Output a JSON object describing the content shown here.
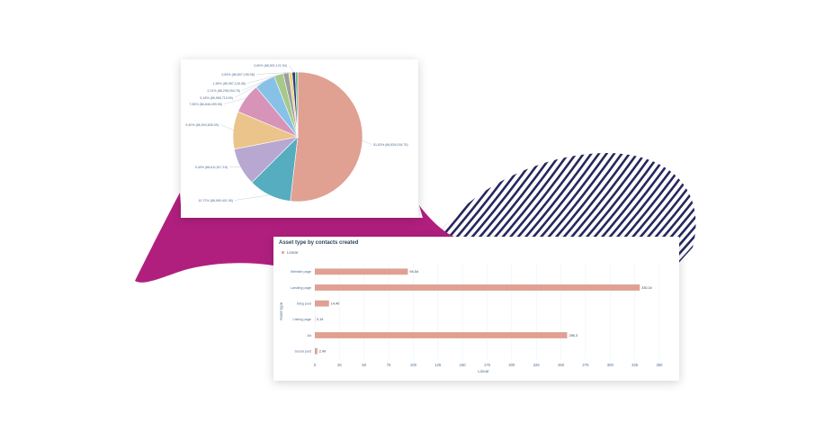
{
  "colors": {
    "magenta_shape": "#b01f7e",
    "stripes": "#27275e",
    "bar": "#e0a092",
    "grid": "#eaf0f6",
    "text": "#516f90",
    "title": "#33475b"
  },
  "chart_data": [
    {
      "type": "pie",
      "title": "",
      "slices": [
        {
          "label": "51,83% (86,839,018.75)",
          "value": 51.83,
          "color": "#e0a092"
        },
        {
          "label": "10,72% (88,969,401.95)",
          "value": 10.72,
          "color": "#56adc0"
        },
        {
          "label": "9,40% (88,611,517.18)",
          "value": 9.4,
          "color": "#b8a7d0"
        },
        {
          "label": "9,40% (86,904,605.09)",
          "value": 9.4,
          "color": "#ebc48b"
        },
        {
          "label": "7,55% (86,848,499.06)",
          "value": 7.55,
          "color": "#d894b8"
        },
        {
          "label": "5,18% (86,966,715.69)",
          "value": 5.18,
          "color": "#88c1e8"
        },
        {
          "label": "2,31% (88,298,094.76)",
          "value": 2.31,
          "color": "#a6c98a"
        },
        {
          "label": "1,38% (86,987,128.46)",
          "value": 1.38,
          "color": "#9e9e9e"
        },
        {
          "label": "0,83% (86,807,155.08)",
          "value": 0.83,
          "color": "#e8d77a"
        },
        {
          "label": "0,80% (88,801,121.54)",
          "value": 0.8,
          "color": "#2f3a7a"
        },
        {
          "label": "",
          "value": 0.6,
          "color": "#6fb08a"
        }
      ]
    },
    {
      "type": "bar",
      "orientation": "horizontal",
      "title": "Asset type by contacts created",
      "legend": [
        "Linear"
      ],
      "xlabel": "Linear",
      "ylabel": "Asset type",
      "xlim": [
        0,
        350
      ],
      "xticks": [
        0,
        25,
        50,
        75,
        100,
        125,
        150,
        175,
        200,
        225,
        250,
        275,
        300,
        325,
        350
      ],
      "categories": [
        "Website page",
        "Landing page",
        "Blog post",
        "Listing page",
        "Ad",
        "Social post"
      ],
      "values": [
        94.5,
        330.1,
        14.4,
        0.1,
        256.3,
        2.5
      ],
      "data_labels": [
        "94,5d",
        "330,1¢",
        "14,40",
        "0,1¢",
        "256,3",
        "2,49"
      ]
    }
  ]
}
